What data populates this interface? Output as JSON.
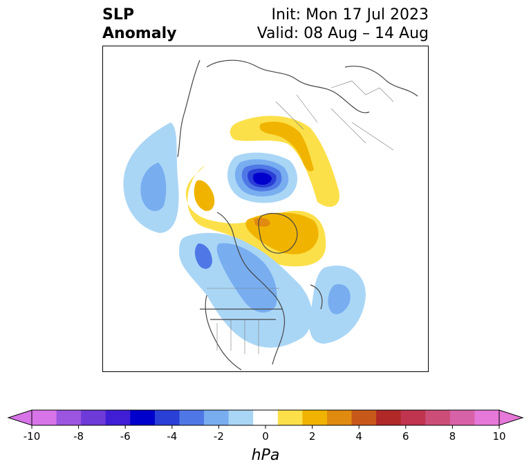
{
  "title": {
    "left_line1": "SLP",
    "left_line2": "Anomaly",
    "right_line1": "Init: Mon 17 Jul 2023",
    "right_line2": "Valid: 08 Aug – 14 Aug"
  },
  "colorbar": {
    "unit": "hPa",
    "ticks": [
      "-10",
      "-8",
      "-6",
      "-4",
      "-2",
      "0",
      "2",
      "4",
      "6",
      "8",
      "10"
    ],
    "colors": [
      "#d774e8",
      "#9b55e0",
      "#6e3ad8",
      "#3f1ed6",
      "#0000cc",
      "#2a3fd6",
      "#4f78e6",
      "#78aef0",
      "#aad6f6",
      "#ffffff",
      "#fce04a",
      "#f0b400",
      "#e08a10",
      "#c8581a",
      "#b02828",
      "#c03450",
      "#cc4e78",
      "#d862a8",
      "#e578d8"
    ],
    "extend_low_color": "#d774e8",
    "extend_high_color": "#e578d8"
  }
}
